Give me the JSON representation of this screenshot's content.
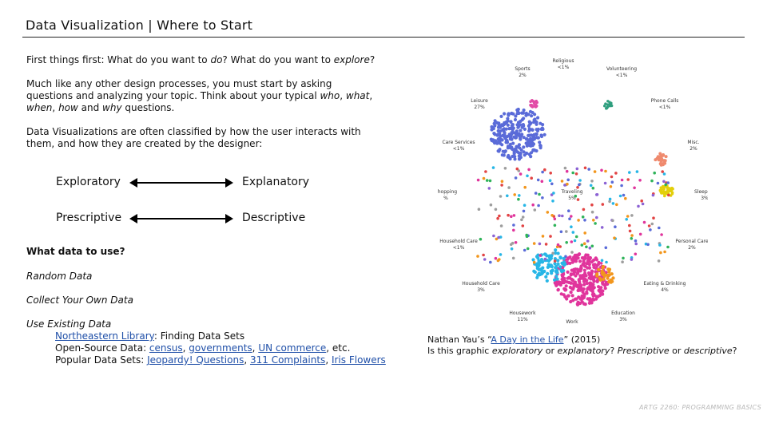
{
  "title": "Data Visualization | Where to Start",
  "intro": {
    "p1_before": "First things first: What do you want to ",
    "p1_do": "do",
    "p1_mid": "? What do you want to ",
    "p1_explore": "explore",
    "p1_end": "?",
    "p2_start": "Much like any other design processes, you must start by asking questions and analyzing your topic. Think about your typical ",
    "p2_who": "who",
    "p2_comma1": ", ",
    "p2_what": "what",
    "p2_comma2": ", ",
    "p2_when": "when",
    "p2_comma3": ", ",
    "p2_how": "how",
    "p2_and": " and ",
    "p2_why": "why",
    "p2_end": " questions.",
    "p3": "Data Visualizations are often classified by how the user interacts with them, and how they are created by the designer:"
  },
  "pairs": {
    "exploratory": "Exploratory",
    "explanatory": "Explanatory",
    "prescriptive": "Prescriptive",
    "descriptive": "Descriptive"
  },
  "data_section": {
    "heading": "What data to use?",
    "random": "Random Data",
    "collect": "Collect Your Own Data",
    "existing": "Use Existing Data",
    "library_link": "Northeastern Library",
    "library_rest": ": Finding Data Sets",
    "open_source_label": "Open-Source Data: ",
    "census": "census",
    "governments": "governments",
    "un_commerce": "UN commerce",
    "etc": ", etc.",
    "popular_label": "Popular Data Sets: ",
    "jeopardy": "Jeopardy! Questions",
    "complaints": "311 Complaints",
    "iris": "Iris Flowers",
    "sep": ", "
  },
  "caption": {
    "line1_start": "Nathan Yau’s “",
    "line1_link": "A Day in the Life",
    "line1_end": "” (2015)",
    "line2_start": "Is this graphic ",
    "exploratory": "exploratory",
    "or1": " or ",
    "explanatory": "explanatory",
    "q1": "? ",
    "prescriptive": "Prescriptive",
    "or2": " or ",
    "descriptive": "descriptive",
    "q2": "?"
  },
  "viz_labels": [
    {
      "name": "Religious",
      "pct": "<1%"
    },
    {
      "name": "Sports",
      "pct": "2%"
    },
    {
      "name": "Volunteering",
      "pct": "<1%"
    },
    {
      "name": "Leisure",
      "pct": "27%"
    },
    {
      "name": "Phone Calls",
      "pct": "<1%"
    },
    {
      "name": "Care Services",
      "pct": "<1%"
    },
    {
      "name": "Misc.",
      "pct": "2%"
    },
    {
      "name": "Shopping",
      "pct": "%"
    },
    {
      "name": "Traveling",
      "pct": "5%"
    },
    {
      "name": "Sleeping",
      "pct": "3%"
    },
    {
      "name": "Household Care",
      "pct": "<1%"
    },
    {
      "name": "Personal Care",
      "pct": "2%"
    },
    {
      "name": "Household Care",
      "pct": "3%"
    },
    {
      "name": "Eating & Drinking",
      "pct": "4%"
    },
    {
      "name": "Housework",
      "pct": "11%"
    },
    {
      "name": "Education",
      "pct": "3%"
    },
    {
      "name": "Work",
      "pct": ""
    }
  ],
  "footer": "ARTG 2260: PROGRAMMING BASICS",
  "colors": {
    "leisure": "#5a6bd8",
    "work": "#e0359c",
    "housework": "#27b6e6",
    "eating": "#f2961c",
    "sleeping": "#e3cf0a",
    "misc": "#ef8a6e",
    "phone": "#2f9e7e",
    "link": "#1f4fa8"
  }
}
